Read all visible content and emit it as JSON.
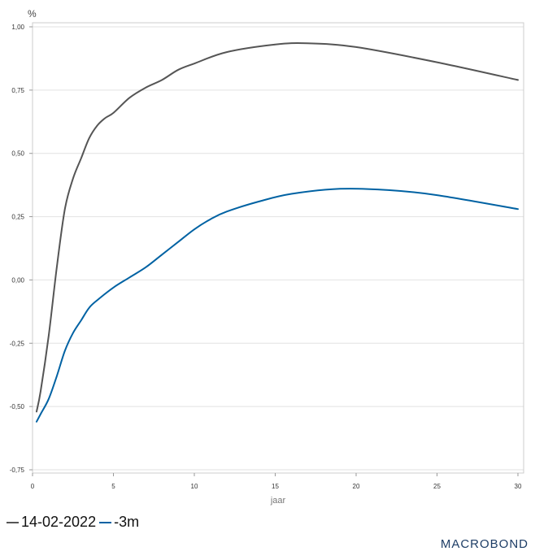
{
  "chart_data": {
    "type": "line",
    "unit_label": "%",
    "xlabel": "jaar",
    "xlim": [
      0,
      30
    ],
    "ylim": [
      -0.75,
      1.0
    ],
    "x_ticks": [
      0,
      5,
      10,
      15,
      20,
      25,
      30
    ],
    "x_tick_labels": [
      "0",
      "5",
      "10",
      "15",
      "20",
      "25",
      "30"
    ],
    "y_ticks": [
      -0.75,
      -0.5,
      -0.25,
      0,
      0.25,
      0.5,
      0.75,
      1.0
    ],
    "y_tick_labels": [
      "-0,75",
      "-0,50",
      "-0,25",
      "0,00",
      "0,25",
      "0,50",
      "0,75",
      "1,00"
    ],
    "grid": true,
    "legend_position": "bottom-left",
    "series": [
      {
        "name": "14-02-2022",
        "color": "#555555",
        "x": [
          0.25,
          0.5,
          1,
          1.5,
          2,
          2.5,
          3,
          3.5,
          4,
          4.5,
          5,
          6,
          7,
          8,
          9,
          10,
          12,
          15,
          17,
          20,
          25,
          30
        ],
        "values": [
          -0.52,
          -0.44,
          -0.22,
          0.05,
          0.28,
          0.4,
          0.48,
          0.56,
          0.61,
          0.64,
          0.66,
          0.72,
          0.76,
          0.79,
          0.83,
          0.855,
          0.9,
          0.93,
          0.935,
          0.92,
          0.86,
          0.79
        ]
      },
      {
        "name": "-3m",
        "color": "#0062a3",
        "x": [
          0.25,
          0.5,
          1,
          1.5,
          2,
          2.5,
          3,
          3.5,
          4,
          5,
          6,
          7,
          8,
          9,
          10,
          11,
          12,
          14,
          16,
          19,
          22,
          25,
          30
        ],
        "values": [
          -0.56,
          -0.53,
          -0.47,
          -0.38,
          -0.28,
          -0.21,
          -0.16,
          -0.11,
          -0.08,
          -0.03,
          0.01,
          0.05,
          0.1,
          0.15,
          0.2,
          0.24,
          0.27,
          0.31,
          0.34,
          0.36,
          0.355,
          0.335,
          0.28
        ]
      }
    ]
  },
  "legend": {
    "items": [
      "14-02-2022",
      "-3m"
    ]
  },
  "branding": {
    "logo_text": "MACROBOND"
  }
}
